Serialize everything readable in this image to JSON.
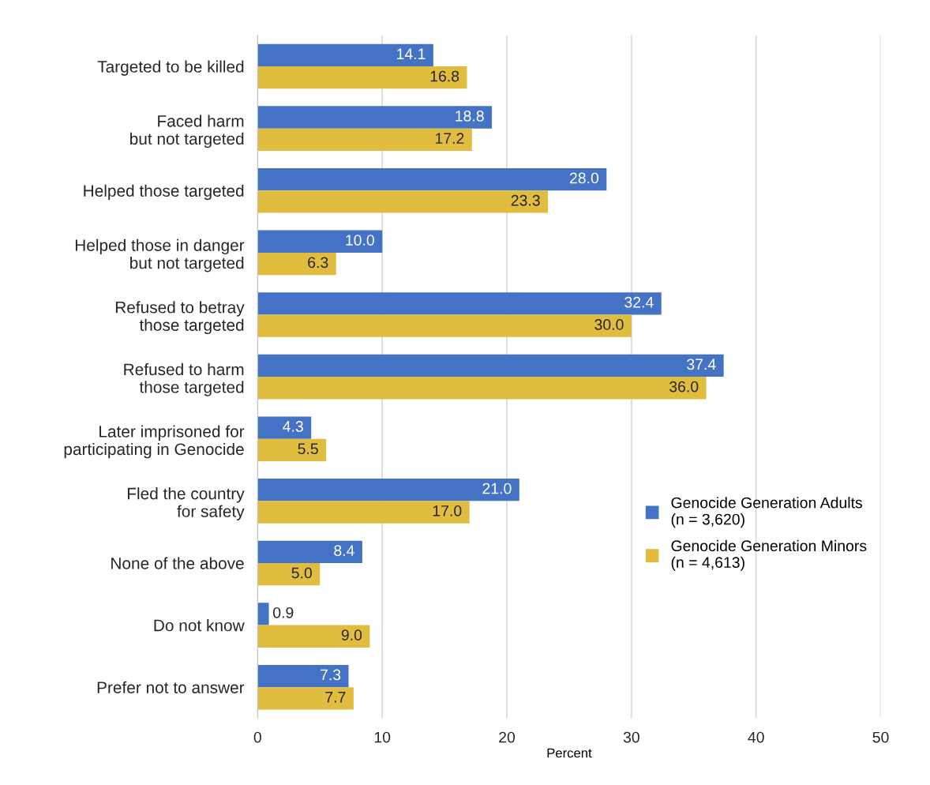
{
  "chart_data": {
    "type": "bar",
    "orientation": "horizontal",
    "xlabel": "Percent",
    "categories": [
      "Targeted to be killed",
      "Faced harm\nbut not targeted",
      "Helped those targeted",
      "Helped those in danger\nbut not targeted",
      "Refused to betray\nthose targeted",
      "Refused to harm\nthose targeted",
      "Later imprisoned for\nparticipating in Genocide",
      "Fled the country\nfor safety",
      "None of the above",
      "Do not know",
      "Prefer not to answer"
    ],
    "series": [
      {
        "name": "Genocide Generation Adults\n(n = 3,620)",
        "color": "#4472c4",
        "values": [
          14.1,
          18.8,
          28.0,
          10.0,
          32.4,
          37.4,
          4.3,
          21.0,
          8.4,
          0.9,
          7.3
        ],
        "value_labels": [
          "14.1",
          "18.8",
          "28.0",
          "10.0",
          "32.4",
          "37.4",
          "4.3",
          "21.0",
          "8.4",
          "0.9",
          "7.3"
        ]
      },
      {
        "name": "Genocide Generation Minors\n(n = 4,613)",
        "color": "#e0bc3f",
        "values": [
          16.8,
          17.2,
          23.3,
          6.3,
          30.0,
          36.0,
          5.5,
          17.0,
          5.0,
          9.0,
          7.7
        ],
        "value_labels": [
          "16.8",
          "17.2",
          "23.3",
          "6.3",
          "30.0",
          "36.0",
          "5.5",
          "17.0",
          "5.0",
          "9.0",
          "7.7"
        ]
      }
    ],
    "xlim": [
      0,
      50
    ],
    "xticks": [
      0,
      10,
      20,
      30,
      40,
      50
    ],
    "grid": "x",
    "legend": "right"
  }
}
